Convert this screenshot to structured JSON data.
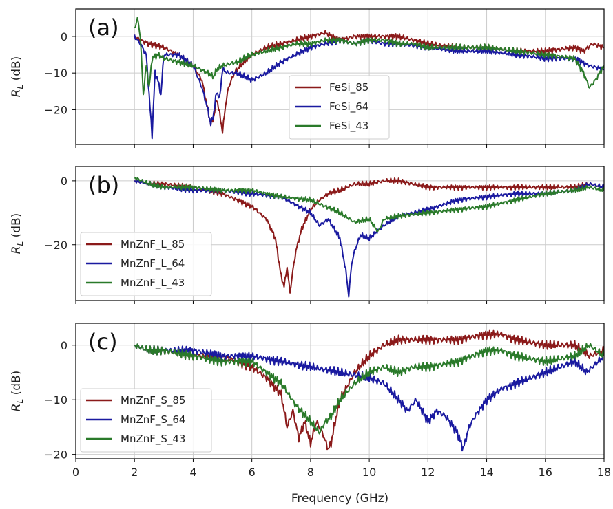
{
  "colors": {
    "series_85": "#8b1a1a",
    "series_64": "#1a1aa0",
    "series_43": "#2a7a2a",
    "grid": "#cccccc"
  },
  "chart_data": [
    {
      "type": "line",
      "panel_label": "(a)",
      "ylabel": "R_L (dB)",
      "ylabel_base": "R",
      "ylabel_sub": "L",
      "ylabel_unit": " (dB)",
      "xlim": [
        0,
        18
      ],
      "ylim": [
        -29.5,
        7.5
      ],
      "yticks": [
        0,
        -10,
        -20
      ],
      "grid": true,
      "legend_position": "center",
      "series": [
        {
          "name": "FeSi_85",
          "color": "#8b1a1a",
          "x": [
            2.0,
            2.2,
            2.5,
            3.0,
            3.5,
            4.0,
            4.3,
            4.5,
            4.6,
            4.7,
            4.8,
            4.9,
            5.0,
            5.1,
            5.2,
            5.4,
            5.6,
            6.0,
            6.5,
            7.0,
            7.5,
            8.0,
            8.5,
            9.0,
            9.5,
            10.0,
            10.5,
            11.0,
            11.5,
            12.0,
            13.0,
            14.0,
            15.0,
            16.0,
            17.0,
            17.3,
            17.6,
            18.0
          ],
          "y": [
            0,
            -1,
            -2,
            -3,
            -5,
            -8,
            -12,
            -20,
            -24,
            -22,
            -17,
            -21,
            -26,
            -19,
            -14,
            -10,
            -8,
            -5,
            -3,
            -2,
            -1,
            0,
            1,
            -1,
            0,
            0,
            0,
            0,
            -1,
            -2,
            -3,
            -3,
            -4,
            -4,
            -3,
            -4,
            -2,
            -3
          ]
        },
        {
          "name": "FeSi_64",
          "color": "#1a1aa0",
          "x": [
            2.0,
            2.2,
            2.4,
            2.6,
            2.7,
            2.8,
            2.9,
            3.0,
            3.5,
            4.0,
            4.3,
            4.5,
            4.6,
            4.7,
            4.8,
            4.9,
            5.0,
            5.2,
            5.5,
            6.0,
            6.5,
            7.0,
            7.5,
            8.0,
            8.5,
            9.0,
            9.5,
            10.0,
            10.5,
            11.0,
            12.0,
            13.0,
            14.0,
            15.0,
            16.0,
            17.0,
            17.5,
            18.0
          ],
          "y": [
            0,
            -2,
            -5,
            -27,
            -10,
            -12,
            -16,
            -5,
            -5,
            -8,
            -14,
            -20,
            -24,
            -21,
            -15,
            -17,
            -9,
            -10,
            -10,
            -12,
            -10,
            -7,
            -5,
            -3,
            -2,
            -1,
            -2,
            -1,
            -2,
            -2,
            -3,
            -4,
            -4,
            -5,
            -6,
            -6,
            -8,
            -9
          ]
        },
        {
          "name": "FeSi_43",
          "color": "#2a7a2a",
          "x": [
            2.0,
            2.1,
            2.2,
            2.3,
            2.4,
            2.5,
            2.6,
            2.8,
            3.0,
            3.5,
            4.0,
            4.5,
            4.7,
            4.8,
            5.0,
            5.5,
            6.0,
            6.5,
            7.0,
            7.5,
            8.0,
            8.5,
            9.0,
            9.5,
            10.0,
            10.5,
            11.0,
            11.5,
            12.0,
            13.0,
            14.0,
            15.0,
            16.0,
            17.0,
            17.3,
            17.5,
            17.7,
            18.0
          ],
          "y": [
            2,
            5,
            0,
            -16,
            -8,
            -14,
            -6,
            -5,
            -6,
            -7,
            -8,
            -10,
            -11,
            -9,
            -8,
            -7,
            -5,
            -4,
            -3,
            -2,
            -2,
            -1,
            -1,
            -2,
            -1,
            -1,
            -2,
            -2,
            -3,
            -3,
            -3,
            -4,
            -5,
            -6,
            -10,
            -14,
            -12,
            -8
          ]
        }
      ]
    },
    {
      "type": "line",
      "panel_label": "(b)",
      "ylabel": "R_L (dB)",
      "ylabel_base": "R",
      "ylabel_sub": "L",
      "ylabel_unit": " (dB)",
      "xlim": [
        0,
        18
      ],
      "ylim": [
        -37.5,
        4.5
      ],
      "yticks": [
        0,
        -20
      ],
      "grid": true,
      "legend_position": "lower left",
      "series": [
        {
          "name": "MnZnF_L_85",
          "color": "#8b1a1a",
          "x": [
            2.0,
            2.5,
            3.0,
            4.0,
            5.0,
            5.5,
            6.0,
            6.5,
            6.8,
            7.0,
            7.1,
            7.2,
            7.3,
            7.4,
            7.5,
            7.7,
            8.0,
            8.3,
            8.6,
            9.0,
            9.5,
            10.0,
            10.5,
            11.0,
            12.0,
            13.0,
            14.0,
            15.0,
            16.0,
            17.0,
            17.5,
            18.0
          ],
          "y": [
            0,
            -1,
            -1,
            -2,
            -4,
            -6,
            -8,
            -12,
            -18,
            -30,
            -33,
            -27,
            -35,
            -28,
            -22,
            -15,
            -9,
            -6,
            -4,
            -3,
            -1,
            -1,
            0,
            0,
            -2,
            -2,
            -2,
            -2,
            -2,
            -2,
            -1,
            -2
          ]
        },
        {
          "name": "MnZnF_L_64",
          "color": "#1a1aa0",
          "x": [
            2.0,
            2.5,
            3.0,
            4.0,
            5.0,
            6.0,
            7.0,
            8.0,
            8.3,
            8.6,
            9.0,
            9.2,
            9.3,
            9.4,
            9.5,
            9.7,
            10.0,
            10.5,
            11.0,
            12.0,
            13.0,
            14.0,
            15.0,
            16.0,
            17.0,
            17.5,
            18.0
          ],
          "y": [
            0,
            -1,
            -2,
            -3,
            -3,
            -4,
            -5,
            -10,
            -14,
            -12,
            -18,
            -28,
            -36,
            -26,
            -22,
            -17,
            -18,
            -14,
            -11,
            -9,
            -6,
            -5,
            -4,
            -4,
            -3,
            -1,
            -2
          ]
        },
        {
          "name": "MnZnF_L_43",
          "color": "#2a7a2a",
          "x": [
            2.0,
            2.5,
            3.0,
            4.0,
            5.0,
            6.0,
            7.0,
            8.0,
            8.5,
            9.0,
            9.5,
            10.0,
            10.3,
            10.5,
            11.0,
            12.0,
            13.0,
            14.0,
            15.0,
            16.0,
            17.0,
            17.5,
            18.0
          ],
          "y": [
            1,
            -1,
            -2,
            -2,
            -3,
            -3,
            -5,
            -6,
            -8,
            -10,
            -13,
            -12,
            -16,
            -12,
            -11,
            -10,
            -9,
            -8,
            -6,
            -4,
            -3,
            -2,
            -3
          ]
        }
      ]
    },
    {
      "type": "line",
      "panel_label": "(c)",
      "ylabel": "R_L (dB)",
      "ylabel_base": "R",
      "ylabel_sub": "L",
      "ylabel_unit": " (dB)",
      "xlabel": "Frequency (GHz)",
      "xlim": [
        0,
        18
      ],
      "ylim": [
        -20.8,
        4.0
      ],
      "yticks": [
        0,
        -10,
        -20
      ],
      "xticks": [
        0,
        2,
        4,
        6,
        8,
        10,
        12,
        14,
        16,
        18
      ],
      "grid": true,
      "legend_position": "lower left",
      "series": [
        {
          "name": "MnZnF_S_85",
          "color": "#8b1a1a",
          "x": [
            2.0,
            2.5,
            3.0,
            4.0,
            5.0,
            6.0,
            6.5,
            7.0,
            7.2,
            7.4,
            7.6,
            7.8,
            8.0,
            8.2,
            8.4,
            8.6,
            8.7,
            8.8,
            9.0,
            9.5,
            10.0,
            10.5,
            11.0,
            12.0,
            13.0,
            14.0,
            14.5,
            15.0,
            16.0,
            17.0,
            17.5,
            18.0
          ],
          "y": [
            0,
            -1,
            -1,
            -2,
            -2,
            -4,
            -6,
            -9,
            -15,
            -12,
            -17,
            -14,
            -18,
            -14,
            -16,
            -19,
            -18,
            -15,
            -10,
            -5,
            -2,
            0,
            1,
            1,
            1,
            2,
            2,
            1,
            0,
            0,
            -2,
            -1
          ]
        },
        {
          "name": "MnZnF_S_64",
          "color": "#1a1aa0",
          "x": [
            2.0,
            2.5,
            3.0,
            4.0,
            5.0,
            6.0,
            7.0,
            8.0,
            9.0,
            10.0,
            10.5,
            11.0,
            11.3,
            11.6,
            12.0,
            12.3,
            12.6,
            13.0,
            13.2,
            13.4,
            13.6,
            14.0,
            14.5,
            15.0,
            16.0,
            17.0,
            17.4,
            18.0
          ],
          "y": [
            0,
            -1,
            -1,
            -1,
            -2,
            -2,
            -3,
            -4,
            -5,
            -6,
            -7,
            -10,
            -12,
            -10,
            -14,
            -12,
            -13,
            -16,
            -19,
            -15,
            -13,
            -10,
            -8,
            -7,
            -5,
            -3,
            -5,
            -2
          ]
        },
        {
          "name": "MnZnF_S_43",
          "color": "#2a7a2a",
          "x": [
            2.0,
            2.5,
            3.0,
            4.0,
            5.0,
            6.0,
            6.5,
            7.0,
            7.5,
            8.0,
            8.3,
            8.5,
            8.7,
            9.0,
            9.5,
            10.0,
            10.5,
            11.0,
            11.5,
            12.0,
            13.0,
            14.0,
            14.5,
            15.0,
            16.0,
            17.0,
            17.5,
            18.0
          ],
          "y": [
            0,
            -1,
            -1,
            -2,
            -3,
            -3,
            -5,
            -7,
            -11,
            -14,
            -16,
            -14,
            -13,
            -10,
            -7,
            -5,
            -4,
            -5,
            -4,
            -4,
            -3,
            -1,
            -1,
            -2,
            -3,
            -2,
            0,
            -2
          ]
        }
      ]
    }
  ]
}
